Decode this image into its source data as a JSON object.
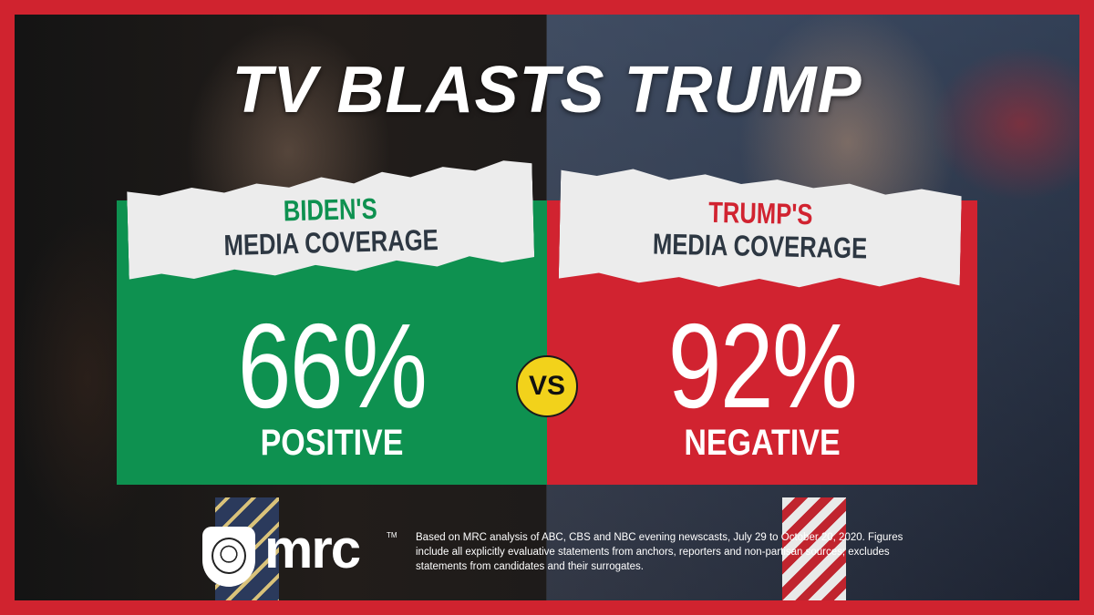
{
  "title": "TV BLASTS TRUMP",
  "colors": {
    "frame": "#d0232f",
    "positive": "#0e9150",
    "negative": "#d12330",
    "biden_label": "#0e9150",
    "trump_label": "#d12330",
    "vs_badge": "#f2d21b"
  },
  "left": {
    "label_top": "BIDEN'S",
    "label_bottom": "MEDIA COVERAGE",
    "value": "66%",
    "descriptor": "POSITIVE"
  },
  "right": {
    "label_top": "TRUMP'S",
    "label_bottom": "MEDIA COVERAGE",
    "value": "92%",
    "descriptor": "NEGATIVE"
  },
  "vs": "VS",
  "logo": {
    "text": "mrc",
    "tm": "TM",
    "icon": "bulldog-icon"
  },
  "footnote": "Based on MRC analysis of ABC, CBS and NBC evening newscasts, July 29 to October 20, 2020. Figures include all explicitly evaluative statements from anchors, reporters and non-partisan sources; excludes statements from candidates and their surrogates."
}
